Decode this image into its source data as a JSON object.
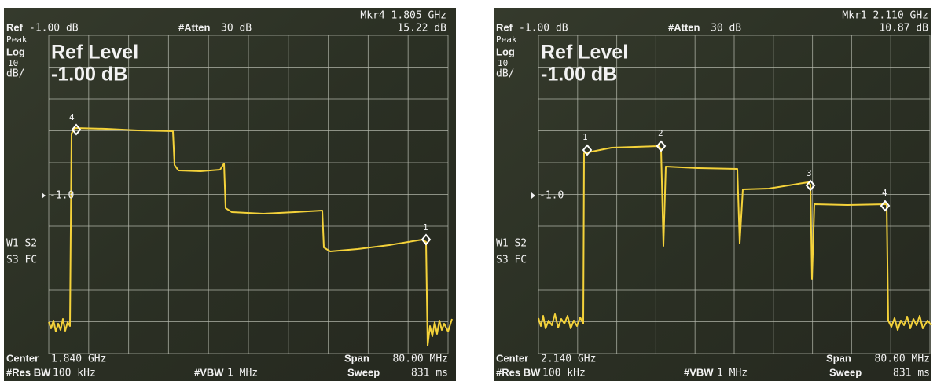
{
  "panels": [
    {
      "marker_readout": "Mkr4 1.805 GHz",
      "marker_level": "15.22 dB",
      "ref": "Ref",
      "ref_value": "-1.00 dB",
      "atten": "#Atten",
      "atten_value": "30 dB",
      "detector": "Peak",
      "scale": "Log",
      "scale_value": "10",
      "scale_unit": "dB/",
      "overlay_title": "Ref Level",
      "overlay_value": "-1.00 dB",
      "threshold": "-1.0",
      "trace_mode_1": "W1 S2",
      "trace_mode_2": "S3 FC",
      "center": "Center",
      "center_value": "1.840 GHz",
      "span": "Span",
      "span_value": "80.00 MHz",
      "res_bw": "#Res BW",
      "res_bw_value": "100 kHz",
      "vbw": "#VBW",
      "vbw_value": "1 MHz",
      "sweep": "Sweep",
      "sweep_value": "831 ms",
      "markers": [
        "4",
        "1"
      ]
    },
    {
      "marker_readout": "Mkr1 2.110 GHz",
      "marker_level": "10.87 dB",
      "ref": "Ref",
      "ref_value": "-1.00 dB",
      "atten": "#Atten",
      "atten_value": "30 dB",
      "detector": "Peak",
      "scale": "Log",
      "scale_value": "10",
      "scale_unit": "dB/",
      "overlay_title": "Ref Level",
      "overlay_value": "-1.00 dB",
      "threshold": "-1.0",
      "trace_mode_1": "W1 S2",
      "trace_mode_2": "S3 FC",
      "center": "Center",
      "center_value": "2.140 GHz",
      "span": "Span",
      "span_value": "80.00 MHz",
      "res_bw": "#Res BW",
      "res_bw_value": "100 kHz",
      "vbw": "#VBW",
      "vbw_value": "1 MHz",
      "sweep": "Sweep",
      "sweep_value": "831 ms",
      "markers": [
        "1",
        "2",
        "3",
        "4"
      ]
    }
  ]
}
